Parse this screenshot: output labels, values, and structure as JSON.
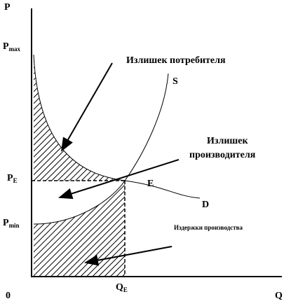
{
  "axes": {
    "y_label": "P",
    "x_label": "Q",
    "origin": "0"
  },
  "price_labels": {
    "p_max": {
      "main": "P",
      "sub": "max"
    },
    "p_e": {
      "main": "P",
      "sub": "E"
    },
    "p_min": {
      "main": "P",
      "sub": "min"
    }
  },
  "quantity_labels": {
    "q_e": {
      "main": "Q",
      "sub": "E"
    }
  },
  "curves": {
    "supply": "S",
    "demand": "D",
    "equilibrium": "E"
  },
  "annotations": {
    "consumer_surplus": "Излишек потребителя",
    "producer_surplus": [
      "Излишек",
      "производителя"
    ],
    "production_costs": "Издержки производства"
  }
}
